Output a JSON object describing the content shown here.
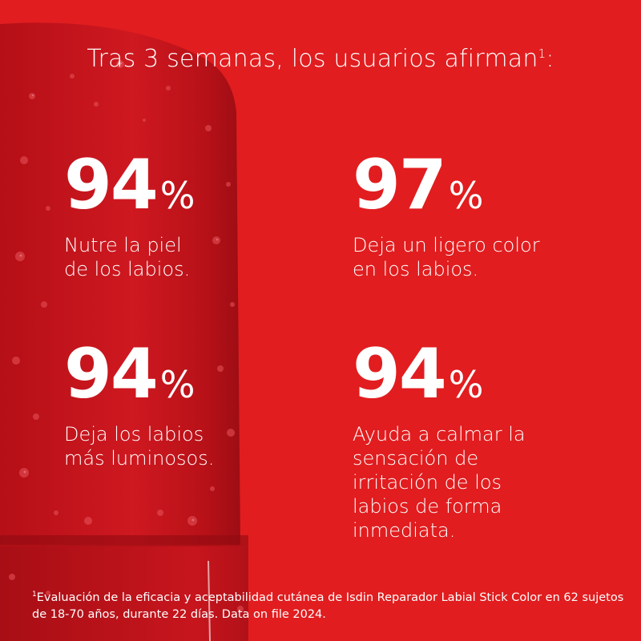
{
  "headline": {
    "text": "Tras 3 semanas, los usuarios afirman",
    "footnote_marker": "1",
    "suffix": ":"
  },
  "stats": [
    {
      "value": "94",
      "unit": "%",
      "description": "Nutre la piel\nde los labios."
    },
    {
      "value": "97",
      "unit": "%",
      "description": "Deja un ligero color\nen los labios."
    },
    {
      "value": "94",
      "unit": "%",
      "description": "Deja los labios\nmás luminosos."
    },
    {
      "value": "94",
      "unit": "%",
      "description": "Ayuda a calmar la\nsensación de\nirritación de los\nlabios de forma\ninmediata."
    }
  ],
  "footnote": {
    "marker": "1",
    "text": "Evaluación de la eficacia y aceptabilidad cutánea de Isdin Reparador Labial Stick Color en 62 sujetos de 18-70 años, durante 22 días. Data on file 2024."
  },
  "colors": {
    "background": "#e11d1f",
    "product": "#c8141c",
    "text": "#ffffff"
  }
}
